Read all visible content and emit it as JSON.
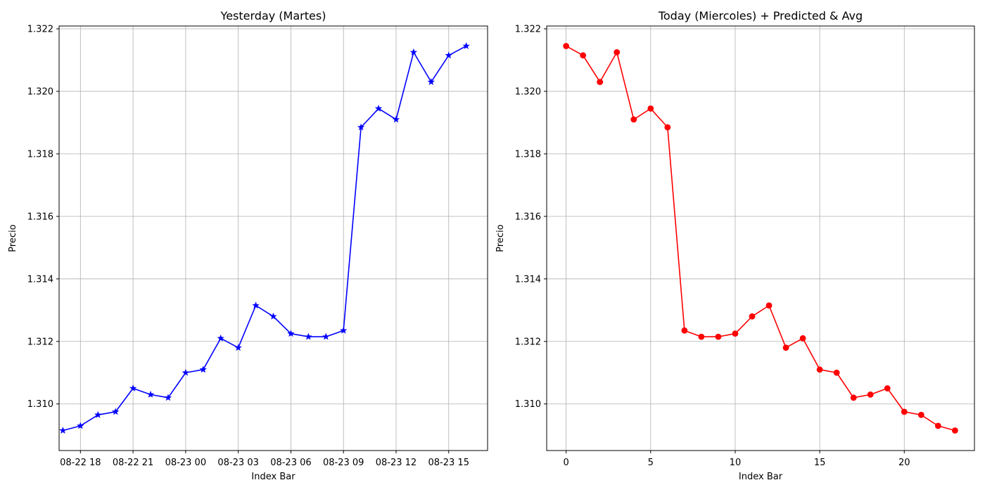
{
  "chart_data": [
    {
      "type": "line",
      "title": "Yesterday (Martes)",
      "xlabel": "Index Bar",
      "ylabel": "Precio",
      "x_axis": "datetime",
      "xlim": [
        "2024-08-22 16:47",
        "2024-08-23 17:13"
      ],
      "ylim": [
        1.30851,
        1.32209
      ],
      "xticks": [
        "2024-08-22 18:00",
        "2024-08-22 21:00",
        "2024-08-23 00:00",
        "2024-08-23 03:00",
        "2024-08-23 06:00",
        "2024-08-23 09:00",
        "2024-08-23 12:00",
        "2024-08-23 15:00"
      ],
      "xtick_labels": [
        "08-22 18",
        "08-22 21",
        "08-23 00",
        "08-23 03",
        "08-23 06",
        "08-23 09",
        "08-23 12",
        "08-23 15"
      ],
      "yticks": [
        1.31,
        1.312,
        1.314,
        1.316,
        1.318,
        1.32,
        1.322
      ],
      "ytick_labels": [
        "1.310",
        "1.312",
        "1.314",
        "1.316",
        "1.318",
        "1.320",
        "1.322"
      ],
      "grid": true,
      "series": [
        {
          "color": "#0000ff",
          "marker": "star",
          "x": [
            "2024-08-22 17:00",
            "2024-08-22 18:00",
            "2024-08-22 19:00",
            "2024-08-22 20:00",
            "2024-08-22 21:00",
            "2024-08-22 22:00",
            "2024-08-22 23:00",
            "2024-08-23 00:00",
            "2024-08-23 01:00",
            "2024-08-23 02:00",
            "2024-08-23 03:00",
            "2024-08-23 04:00",
            "2024-08-23 05:00",
            "2024-08-23 06:00",
            "2024-08-23 07:00",
            "2024-08-23 08:00",
            "2024-08-23 09:00",
            "2024-08-23 10:00",
            "2024-08-23 11:00",
            "2024-08-23 12:00",
            "2024-08-23 13:00",
            "2024-08-23 14:00",
            "2024-08-23 15:00",
            "2024-08-23 16:00"
          ],
          "y": [
            1.30915,
            1.3093,
            1.30965,
            1.30975,
            1.3105,
            1.3103,
            1.3102,
            1.311,
            1.3111,
            1.3121,
            1.3118,
            1.31315,
            1.3128,
            1.31225,
            1.31215,
            1.31215,
            1.31235,
            1.31885,
            1.31945,
            1.3191,
            1.32125,
            1.3203,
            1.32115,
            1.32145
          ]
        }
      ]
    },
    {
      "type": "line",
      "title": "Today (Miercoles)  + Predicted & Avg",
      "xlabel": "Index Bar",
      "ylabel": "Precio",
      "xlim": [
        -1.15,
        24.15
      ],
      "ylim": [
        1.30851,
        1.32209
      ],
      "xticks": [
        0,
        5,
        10,
        15,
        20
      ],
      "xtick_labels": [
        "0",
        "5",
        "10",
        "15",
        "20"
      ],
      "yticks": [
        1.31,
        1.312,
        1.314,
        1.316,
        1.318,
        1.32,
        1.322
      ],
      "ytick_labels": [
        "1.310",
        "1.312",
        "1.314",
        "1.316",
        "1.318",
        "1.320",
        "1.322"
      ],
      "grid": true,
      "series": [
        {
          "color": "#ff0000",
          "marker": "circle",
          "x": [
            0,
            1,
            2,
            3,
            4,
            5,
            6,
            7,
            8,
            9,
            10,
            11,
            12,
            13,
            14,
            15,
            16,
            17,
            18,
            19,
            20,
            21,
            22,
            23
          ],
          "y": [
            1.32145,
            1.32115,
            1.3203,
            1.32125,
            1.3191,
            1.31945,
            1.31885,
            1.31235,
            1.31215,
            1.31215,
            1.31225,
            1.3128,
            1.31315,
            1.3118,
            1.3121,
            1.3111,
            1.311,
            1.3102,
            1.3103,
            1.3105,
            1.30975,
            1.30965,
            1.3093,
            1.30915
          ]
        }
      ]
    }
  ]
}
